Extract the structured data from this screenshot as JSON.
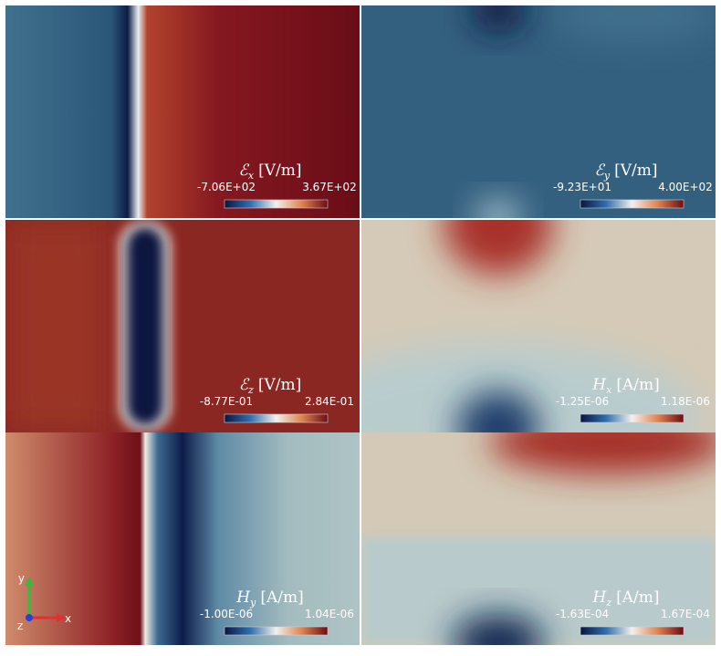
{
  "panels": [
    {
      "symbol": "ℰ",
      "subscript": "x",
      "unit": "[V/m]",
      "min": "-7.06E+02",
      "max": "3.67E+02"
    },
    {
      "symbol": "ℰ",
      "subscript": "y",
      "unit": "[V/m]",
      "min": "-9.23E+01",
      "max": "4.00E+02"
    },
    {
      "symbol": "ℰ",
      "subscript": "z",
      "unit": "[V/m]",
      "min": "-8.77E-01",
      "max": "2.84E-01"
    },
    {
      "symbol": "H",
      "subscript": "x",
      "unit": "[A/m]",
      "min": "-1.25E-06",
      "max": "1.18E-06"
    },
    {
      "symbol": "H",
      "subscript": "y",
      "unit": "[A/m]",
      "min": "-1.00E-06",
      "max": "1.04E-06"
    },
    {
      "symbol": "H",
      "subscript": "z",
      "unit": "[A/m]",
      "min": "-1.63E-04",
      "max": "1.67E-04"
    }
  ],
  "axes_triad": {
    "x": "x",
    "y": "y",
    "z": "z"
  }
}
